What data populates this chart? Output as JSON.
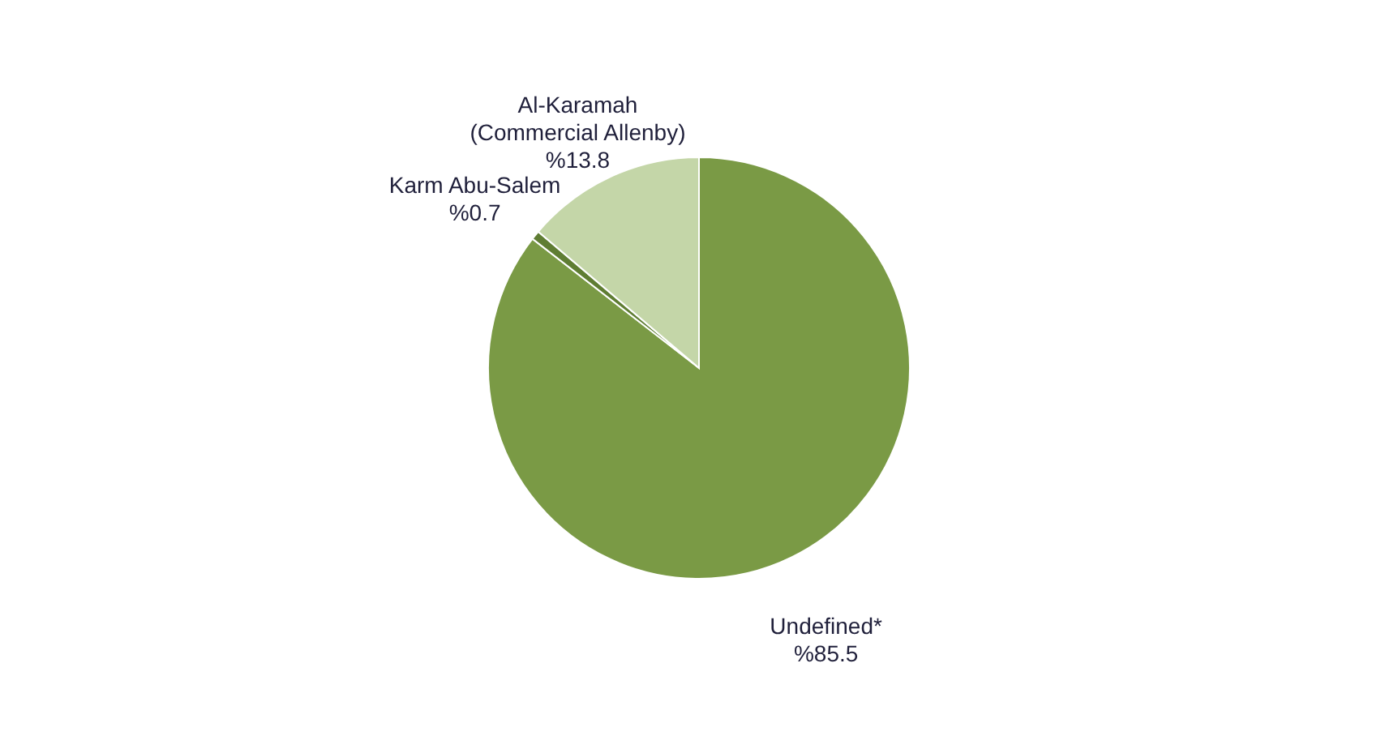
{
  "chart_data": {
    "type": "pie",
    "categories": [
      "Undefined*",
      "Karm Abu-Salem",
      "Al-Karamah\n(Commercial Allenby)"
    ],
    "values": [
      85.5,
      0.7,
      13.8
    ],
    "value_labels": [
      "%85.5",
      "%0.7",
      "%13.8"
    ],
    "colors": [
      "#7a9a45",
      "#5f7d33",
      "#c4d6a8"
    ]
  }
}
